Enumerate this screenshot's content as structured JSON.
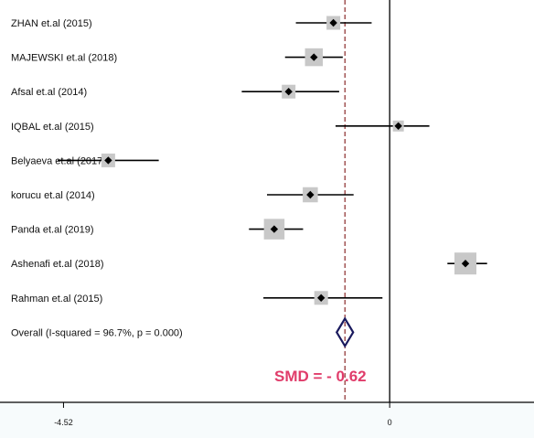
{
  "chart_data": {
    "type": "forest",
    "studies": [
      {
        "label": "ZHAN et.al (2015)",
        "estimate": -0.78,
        "ci": [
          -1.3,
          -0.25
        ],
        "weight": 1.0
      },
      {
        "label": "MAJEWSKI et.al (2018)",
        "estimate": -1.05,
        "ci": [
          -1.45,
          -0.65
        ],
        "weight": 1.3
      },
      {
        "label": "Afsal et.al (2014)",
        "estimate": -1.4,
        "ci": [
          -2.05,
          -0.7
        ],
        "weight": 1.0
      },
      {
        "label": "IQBAL et.al (2015)",
        "estimate": 0.12,
        "ci": [
          -0.75,
          0.55
        ],
        "weight": 0.8
      },
      {
        "label": "Belyaeva   et.al (2017)",
        "estimate": -3.9,
        "ci": [
          -4.6,
          -3.2
        ],
        "weight": 1.0
      },
      {
        "label": "korucu et.al (2014)",
        "estimate": -1.1,
        "ci": [
          -1.7,
          -0.5
        ],
        "weight": 1.1
      },
      {
        "label": "Panda et.al (2019)",
        "estimate": -1.6,
        "ci": [
          -1.95,
          -1.2
        ],
        "weight": 1.5
      },
      {
        "label": "Ashenafi  et.al (2018)",
        "estimate": 1.05,
        "ci": [
          0.8,
          1.35
        ],
        "weight": 1.6
      },
      {
        "label": "Rahman et.al (2015)",
        "estimate": -0.95,
        "ci": [
          -1.75,
          -0.1
        ],
        "weight": 1.0
      }
    ],
    "overall": {
      "label": "Overall  (I-squared = 96.7%, p = 0.000)",
      "estimate": -0.62,
      "ci": [
        -0.7,
        -0.54
      ]
    },
    "null_line": 0,
    "x_ticks": [
      -4.52,
      0
    ],
    "x_tick_labels": [
      "-4.52",
      "0"
    ],
    "xlim": [
      -5.4,
      2.0
    ],
    "annotation": "SMD = - 0.62"
  },
  "colors": {
    "point": "#000000",
    "weight_box": "#c8c8c8",
    "overall_diamond": "#1a1a5e",
    "pooled_line": "#8b2a2a",
    "annotation": "#e03c6a"
  }
}
